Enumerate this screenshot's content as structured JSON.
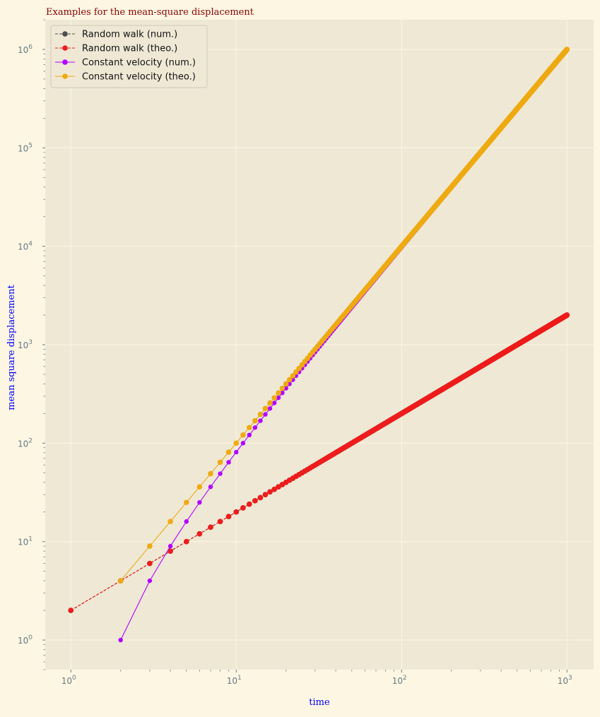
{
  "chart_data": {
    "type": "line",
    "title": "Examples for the mean-square displacement",
    "xlabel": "time",
    "ylabel": "mean square displacement",
    "xscale": "log",
    "yscale": "log",
    "xlim": [
      0.7,
      1450
    ],
    "ylim": [
      0.5,
      2000000
    ],
    "grid": true,
    "legend_position": "top-left",
    "x_ticks": [
      {
        "value": 1,
        "base": "10",
        "exp": "0"
      },
      {
        "value": 10,
        "base": "10",
        "exp": "1"
      },
      {
        "value": 100,
        "base": "10",
        "exp": "2"
      },
      {
        "value": 1000,
        "base": "10",
        "exp": "3"
      }
    ],
    "y_ticks": [
      {
        "value": 1,
        "base": "10",
        "exp": "0"
      },
      {
        "value": 10,
        "base": "10",
        "exp": "1"
      },
      {
        "value": 100,
        "base": "10",
        "exp": "2"
      },
      {
        "value": 1000,
        "base": "10",
        "exp": "3"
      },
      {
        "value": 10000,
        "base": "10",
        "exp": "4"
      },
      {
        "value": 100000,
        "base": "10",
        "exp": "5"
      },
      {
        "value": 1000000,
        "base": "10",
        "exp": "6"
      }
    ],
    "series": [
      {
        "name": "Random walk (num.)",
        "color": "#4d4d4d",
        "linestyle": "dashed",
        "marker": "circle",
        "x_range": [
          1,
          1000
        ],
        "formula": "2*x"
      },
      {
        "name": "Random walk (theo.)",
        "color": "#ee1c1c",
        "linestyle": "dashed",
        "marker": "circle",
        "x_range": [
          1,
          1000
        ],
        "formula": "2*x"
      },
      {
        "name": "Constant velocity (num.)",
        "color": "#b200ff",
        "linestyle": "solid",
        "marker": "circle",
        "x_range": [
          2,
          1000
        ],
        "formula": "(x-1)^2"
      },
      {
        "name": "Constant velocity (theo.)",
        "color": "#eeaa11",
        "linestyle": "solid",
        "marker": "circle",
        "x_range": [
          2,
          1000
        ],
        "formula": "x^2"
      }
    ]
  },
  "colors": {
    "page_background": "#fdf6e3",
    "plot_background": "#eee8d5",
    "grid": "#fdf6e3",
    "tick_text": "#657b83",
    "title": "#8b0000",
    "axis_label": "#0000ff"
  }
}
